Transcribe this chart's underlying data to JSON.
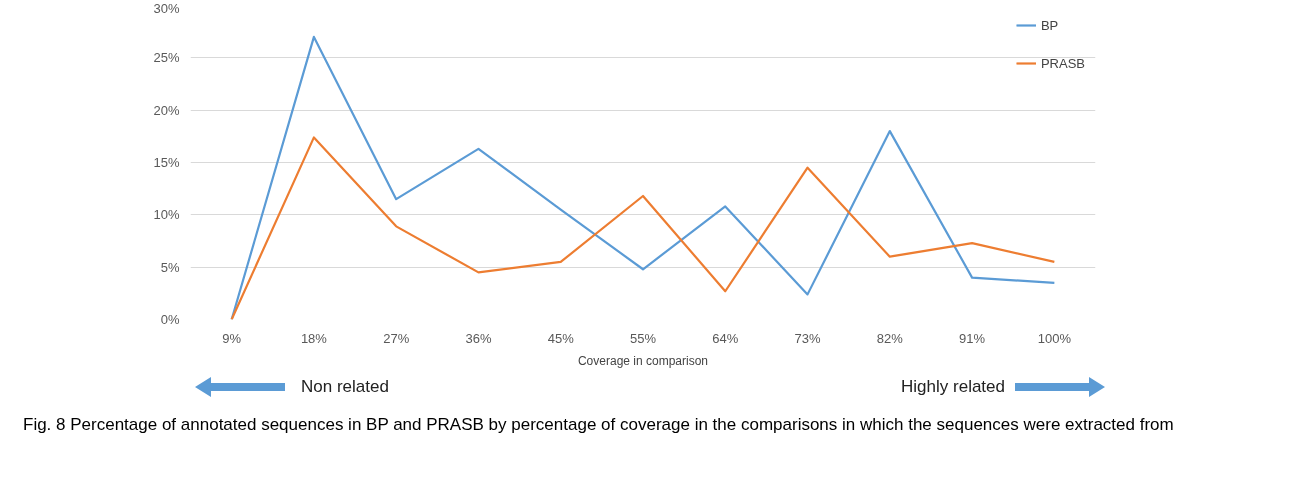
{
  "chart_data": {
    "type": "line",
    "xlabel": "Coverage in comparison",
    "categories": [
      "9%",
      "18%",
      "27%",
      "36%",
      "45%",
      "55%",
      "64%",
      "73%",
      "82%",
      "91%",
      "100%"
    ],
    "series": [
      {
        "name": "BP",
        "color": "#5b9bd5",
        "values": [
          0,
          27,
          11.5,
          16.3,
          10.5,
          4.8,
          10.8,
          2.4,
          18,
          4,
          3.5
        ]
      },
      {
        "name": "PRASB",
        "color": "#ed7d31",
        "values": [
          0,
          17.4,
          8.9,
          4.5,
          5.5,
          11.8,
          2.7,
          14.5,
          6,
          7.3,
          5.5
        ]
      }
    ],
    "ylim": [
      0,
      30
    ],
    "yticks": [
      {
        "value": 0,
        "label": "0%"
      },
      {
        "value": 5,
        "label": "5%"
      },
      {
        "value": 10,
        "label": "10%"
      },
      {
        "value": 15,
        "label": "15%"
      },
      {
        "value": 20,
        "label": "20%"
      },
      {
        "value": 25,
        "label": "25%"
      },
      {
        "value": 30,
        "label": "30%"
      }
    ],
    "grid": "y",
    "legend": "top right",
    "marker": "none",
    "line_style": "solid",
    "annotations": [
      "Non related",
      "Highly related",
      "Fig. 8 Percentage of annotated sequences in BP and PRASB by percentage of coverage in the comparisons in which the sequences were extracted from"
    ]
  }
}
